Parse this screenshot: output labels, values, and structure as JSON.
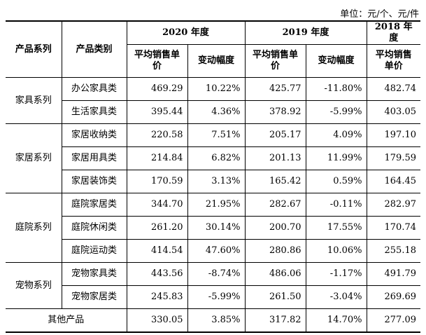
{
  "unit_note": "单位：元/个、元/件",
  "headers": {
    "series_col": "产品系列",
    "category_col": "产品类别",
    "years": [
      "2020 年度",
      "2019 年度",
      "2018 年度"
    ],
    "avg_price": "平均销售单价",
    "change": "变动幅度"
  },
  "groups": [
    {
      "series": "家具系列",
      "rows": [
        {
          "category": "办公家具类",
          "p2020": "469.29",
          "c2020": "10.22%",
          "p2019": "425.77",
          "c2019": "-11.80%",
          "p2018": "482.74"
        },
        {
          "category": "生活家具类",
          "p2020": "395.44",
          "c2020": "4.36%",
          "p2019": "378.92",
          "c2019": "-5.99%",
          "p2018": "403.05"
        }
      ]
    },
    {
      "series": "家居系列",
      "rows": [
        {
          "category": "家居收纳类",
          "p2020": "220.58",
          "c2020": "7.51%",
          "p2019": "205.17",
          "c2019": "4.09%",
          "p2018": "197.10"
        },
        {
          "category": "家居用具类",
          "p2020": "214.84",
          "c2020": "6.82%",
          "p2019": "201.13",
          "c2019": "11.99%",
          "p2018": "179.59"
        },
        {
          "category": "家居装饰类",
          "p2020": "170.59",
          "c2020": "3.13%",
          "p2019": "165.42",
          "c2019": "0.59%",
          "p2018": "164.45"
        }
      ]
    },
    {
      "series": "庭院系列",
      "rows": [
        {
          "category": "庭院家居类",
          "p2020": "344.70",
          "c2020": "21.95%",
          "p2019": "282.67",
          "c2019": "-0.11%",
          "p2018": "282.97"
        },
        {
          "category": "庭院休闲类",
          "p2020": "261.20",
          "c2020": "30.14%",
          "p2019": "200.70",
          "c2019": "17.55%",
          "p2018": "170.74"
        },
        {
          "category": "庭院运动类",
          "p2020": "414.54",
          "c2020": "47.60%",
          "p2019": "280.86",
          "c2019": "10.06%",
          "p2018": "255.18"
        }
      ]
    },
    {
      "series": "宠物系列",
      "rows": [
        {
          "category": "宠物家具类",
          "p2020": "443.56",
          "c2020": "-8.74%",
          "p2019": "486.06",
          "c2019": "-1.17%",
          "p2018": "491.79"
        },
        {
          "category": "宠物家居类",
          "p2020": "245.83",
          "c2020": "-5.99%",
          "p2019": "261.50",
          "c2019": "-3.04%",
          "p2018": "269.69"
        }
      ]
    }
  ],
  "other": {
    "label": "其他产品",
    "p2020": "330.05",
    "c2020": "3.85%",
    "p2019": "317.82",
    "c2019": "14.70%",
    "p2018": "277.09"
  }
}
